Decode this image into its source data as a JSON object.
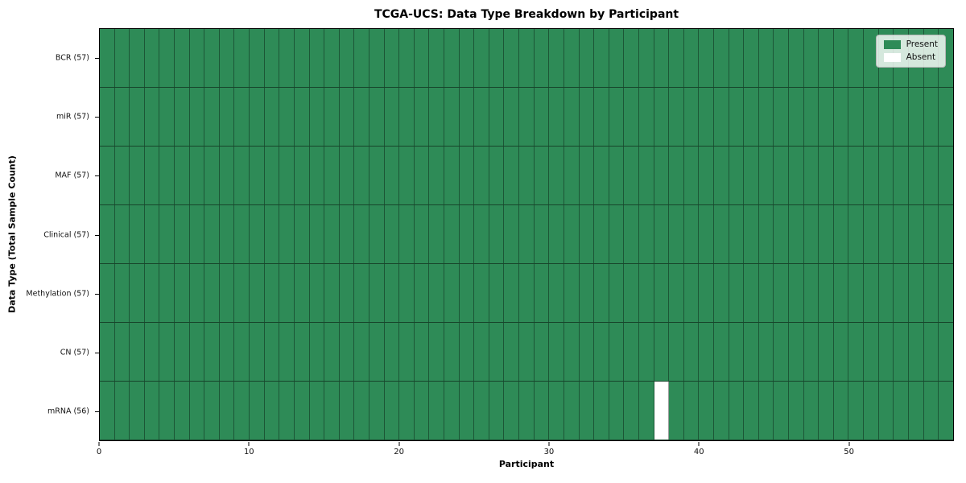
{
  "figure": {
    "title": "TCGA-UCS: Data Type Breakdown by Participant",
    "xlabel": "Participant",
    "ylabel": "Data Type (Total Sample Count)"
  },
  "legend": {
    "items": [
      {
        "label": "Present",
        "color": "#2e8b57"
      },
      {
        "label": "Absent",
        "color": "#ffffff"
      }
    ],
    "position": "upper right"
  },
  "chart_data": {
    "type": "heatmap",
    "title": "TCGA-UCS: Data Type Breakdown by Participant",
    "xlabel": "Participant",
    "ylabel": "Data Type (Total Sample Count)",
    "x_ticks": [
      0,
      10,
      20,
      30,
      40,
      50
    ],
    "x_range": [
      0,
      57
    ],
    "n_participants": 57,
    "categories_top_to_bottom": [
      "BCR (57)",
      "miR (57)",
      "MAF (57)",
      "Clinical (57)",
      "Methylation (57)",
      "CN (57)",
      "mRNA (56)"
    ],
    "series": [
      {
        "name": "BCR (57)",
        "data_type": "BCR",
        "present_count": 57,
        "absent_participants": []
      },
      {
        "name": "miR (57)",
        "data_type": "miR",
        "present_count": 57,
        "absent_participants": []
      },
      {
        "name": "MAF (57)",
        "data_type": "MAF",
        "present_count": 57,
        "absent_participants": []
      },
      {
        "name": "Clinical (57)",
        "data_type": "Clinical",
        "present_count": 57,
        "absent_participants": []
      },
      {
        "name": "Methylation (57)",
        "data_type": "Methylation",
        "present_count": 57,
        "absent_participants": []
      },
      {
        "name": "CN (57)",
        "data_type": "CN",
        "present_count": 57,
        "absent_participants": []
      },
      {
        "name": "mRNA (56)",
        "data_type": "mRNA",
        "present_count": 56,
        "absent_participants": [
          37
        ]
      }
    ],
    "colors": {
      "present": "#2e8b57",
      "absent": "#ffffff"
    },
    "legend_entries": [
      "Present",
      "Absent"
    ],
    "legend_position": "upper right",
    "grid": true
  }
}
